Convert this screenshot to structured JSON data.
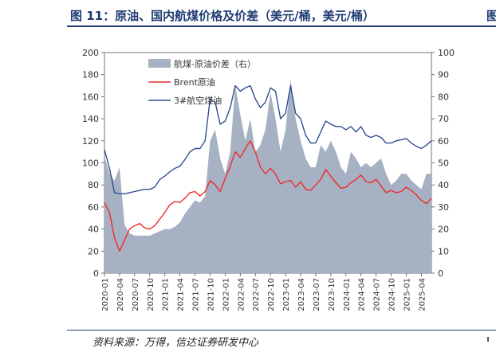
{
  "header": {
    "title": "图 11：原油、国内航煤价格及价差（美元/桶，美元/桶）",
    "edge_glyph": "图"
  },
  "footer": {
    "source": "资料来源：万得，信达证券研发中心"
  },
  "colors": {
    "area": "#a6b1c3",
    "brent": "#f02b2b",
    "jet": "#2f4f8f",
    "axis": "#555555",
    "title": "#1f3b73"
  },
  "chart_data": {
    "type": "line",
    "title": "原油、国内航煤价格及价差（美元/桶，美元/桶）",
    "left_axis": {
      "min": 0,
      "max": 200,
      "ticks": [
        "0",
        "20",
        "40",
        "60",
        "80",
        "100",
        "120",
        "140",
        "160",
        "180",
        "200"
      ]
    },
    "right_axis": {
      "min": 0,
      "max": 100,
      "ticks": [
        "0",
        "10",
        "20",
        "30",
        "40",
        "50",
        "60",
        "70",
        "80",
        "90",
        "100"
      ]
    },
    "x_ticks": [
      "2020-01",
      "2020-04",
      "2020-07",
      "2020-10",
      "2021-01",
      "2021-04",
      "2021-07",
      "2021-10",
      "2022-01",
      "2022-04",
      "2022-07",
      "2022-10",
      "2023-01",
      "2023-04",
      "2023-07",
      "2023-10",
      "2024-01",
      "2024-04",
      "2024-07",
      "2024-10",
      "2025-01",
      "2025-04"
    ],
    "legend": [
      "航煤-原油价差（右）",
      "Brent原油",
      "3#航空煤油"
    ],
    "legend_position": "top-left",
    "months": [
      "2020-01",
      "2020-02",
      "2020-03",
      "2020-04",
      "2020-05",
      "2020-06",
      "2020-07",
      "2020-08",
      "2020-09",
      "2020-10",
      "2020-11",
      "2020-12",
      "2021-01",
      "2021-02",
      "2021-03",
      "2021-04",
      "2021-05",
      "2021-06",
      "2021-07",
      "2021-08",
      "2021-09",
      "2021-10",
      "2021-11",
      "2021-12",
      "2022-01",
      "2022-02",
      "2022-03",
      "2022-04",
      "2022-05",
      "2022-06",
      "2022-07",
      "2022-08",
      "2022-09",
      "2022-10",
      "2022-11",
      "2022-12",
      "2023-01",
      "2023-02",
      "2023-03",
      "2023-04",
      "2023-05",
      "2023-06",
      "2023-07",
      "2023-08",
      "2023-09",
      "2023-10",
      "2023-11",
      "2023-12",
      "2024-01",
      "2024-02",
      "2024-03",
      "2024-04",
      "2024-05",
      "2024-06",
      "2024-07",
      "2024-08",
      "2024-09",
      "2024-10",
      "2024-11",
      "2024-12",
      "2025-01",
      "2025-02",
      "2025-03",
      "2025-04",
      "2025-05",
      "2025-06"
    ],
    "series": [
      {
        "name": "航煤-原油价差（右）",
        "axis": "right",
        "kind": "area",
        "values": [
          53,
          45,
          42,
          48,
          22,
          18,
          17,
          17,
          17,
          17,
          18,
          19,
          20,
          20,
          21,
          23,
          27,
          30,
          33,
          32,
          35,
          60,
          65,
          52,
          45,
          55,
          85,
          72,
          60,
          70,
          55,
          58,
          65,
          82,
          70,
          55,
          65,
          88,
          70,
          60,
          52,
          48,
          48,
          58,
          55,
          60,
          55,
          48,
          45,
          55,
          52,
          48,
          50,
          48,
          50,
          52,
          45,
          40,
          42,
          45,
          45,
          42,
          40,
          38,
          45,
          45
        ]
      },
      {
        "name": "Brent原油",
        "axis": "left",
        "kind": "line",
        "values": [
          64,
          55,
          32,
          20,
          30,
          40,
          43,
          45,
          41,
          40,
          43,
          49,
          55,
          62,
          65,
          64,
          68,
          73,
          74,
          70,
          74,
          84,
          80,
          74,
          86,
          97,
          110,
          105,
          113,
          120,
          110,
          96,
          90,
          95,
          90,
          81,
          83,
          84,
          78,
          83,
          76,
          75,
          80,
          85,
          94,
          88,
          82,
          77,
          78,
          82,
          85,
          89,
          83,
          82,
          85,
          79,
          73,
          75,
          73,
          74,
          78,
          75,
          71,
          66,
          63,
          68
        ]
      },
      {
        "name": "3#航空煤油",
        "axis": "left",
        "kind": "line",
        "values": [
          112,
          95,
          73,
          72,
          72,
          73,
          74,
          75,
          76,
          76,
          78,
          85,
          88,
          92,
          95,
          97,
          103,
          110,
          113,
          113,
          120,
          158,
          155,
          135,
          138,
          150,
          170,
          165,
          168,
          170,
          158,
          150,
          155,
          168,
          165,
          140,
          145,
          170,
          145,
          140,
          125,
          118,
          118,
          128,
          138,
          135,
          133,
          133,
          130,
          133,
          128,
          133,
          125,
          123,
          125,
          123,
          118,
          118,
          120,
          121,
          122,
          118,
          115,
          113,
          116,
          120
        ]
      }
    ]
  }
}
